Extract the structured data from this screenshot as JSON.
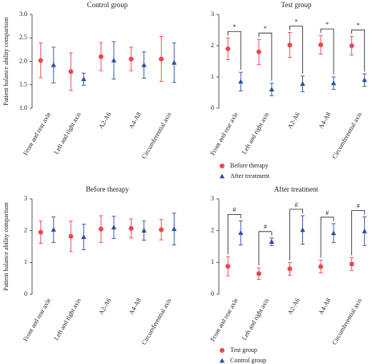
{
  "chart_data": [
    {
      "type": "errorbar",
      "title": "Control group",
      "ylabel": "Patient balance ability comparison",
      "categories": [
        "Front and rear axle",
        "Left and right axis",
        "A2-A6",
        "A4-A8",
        "Circumferential axis"
      ],
      "ylim": [
        1,
        3
      ],
      "yticks": [
        {
          "value": 1,
          "label": "1.0"
        },
        1.5,
        {
          "value": 2,
          "label": "2.0"
        },
        2.5,
        {
          "value": 3,
          "label": "3.0"
        }
      ],
      "series": [
        {
          "color": "#e8474f",
          "marker": "circle",
          "values": [
            2.02,
            1.78,
            2.1,
            2.05,
            2.05
          ],
          "errors": [
            0.37,
            0.4,
            0.3,
            0.25,
            0.48
          ]
        },
        {
          "color": "#2f4fa0",
          "marker": "triangle",
          "values": [
            1.92,
            1.62,
            2.02,
            1.92,
            1.97
          ],
          "errors": [
            0.38,
            0.13,
            0.4,
            0.28,
            0.42
          ]
        }
      ]
    },
    {
      "type": "errorbar",
      "title": "Test group",
      "categories": [
        "Front and rear axle",
        "Left and right axis",
        "A2-A6",
        "A4-A8",
        "Circumferential axis"
      ],
      "ylim": [
        0,
        3
      ],
      "yticks": [
        0,
        1,
        2,
        3
      ],
      "legend": true,
      "annotations": [
        "*",
        "*",
        "*",
        "*",
        "*"
      ],
      "series": [
        {
          "name": "Before therapy",
          "color": "#e8474f",
          "marker": "circle",
          "values": [
            1.9,
            1.8,
            2.02,
            2.03,
            2.0
          ],
          "errors": [
            0.35,
            0.4,
            0.4,
            0.3,
            0.3
          ]
        },
        {
          "name": "After treatment",
          "color": "#2f4fa0",
          "marker": "triangle",
          "values": [
            0.85,
            0.6,
            0.78,
            0.8,
            0.9
          ],
          "errors": [
            0.3,
            0.2,
            0.25,
            0.2,
            0.2
          ]
        }
      ]
    },
    {
      "type": "errorbar",
      "title": "Before therapy",
      "ylabel": "Patient balance ability comparison",
      "categories": [
        "Front and rear axle",
        "Left and right axis",
        "A2-A6",
        "A4-A8",
        "Circumferential axis"
      ],
      "ylim": [
        0,
        3
      ],
      "yticks": [
        0,
        1,
        2,
        3
      ],
      "series": [
        {
          "color": "#e8474f",
          "marker": "circle",
          "values": [
            1.95,
            1.82,
            2.05,
            2.07,
            2.03
          ],
          "errors": [
            0.35,
            0.48,
            0.42,
            0.3,
            0.32
          ]
        },
        {
          "color": "#2f4fa0",
          "marker": "triangle",
          "values": [
            2.03,
            1.8,
            2.1,
            2.0,
            2.05
          ],
          "errors": [
            0.4,
            0.4,
            0.35,
            0.3,
            0.5
          ]
        }
      ]
    },
    {
      "type": "errorbar",
      "title": "After treatment",
      "categories": [
        "Front and rear axle",
        "Left and right axis",
        "A2-A6",
        "A4-A8",
        "Circumferential axis"
      ],
      "ylim": [
        0,
        3
      ],
      "yticks": [
        0,
        1,
        2,
        3
      ],
      "legend": true,
      "annotations": [
        "#",
        "#",
        "#",
        "#",
        "#"
      ],
      "series": [
        {
          "name": "Test group",
          "color": "#e8474f",
          "marker": "circle",
          "values": [
            0.88,
            0.65,
            0.8,
            0.87,
            0.95
          ],
          "errors": [
            0.3,
            0.18,
            0.2,
            0.2,
            0.2
          ]
        },
        {
          "name": "Control group",
          "color": "#2f4fa0",
          "marker": "triangle",
          "values": [
            1.93,
            1.65,
            2.02,
            1.92,
            1.98
          ],
          "errors": [
            0.38,
            0.12,
            0.45,
            0.3,
            0.45
          ]
        }
      ]
    }
  ]
}
